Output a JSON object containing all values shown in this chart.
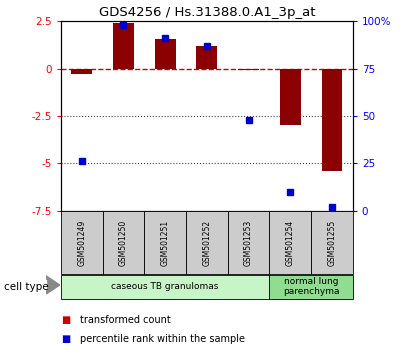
{
  "title": "GDS4256 / Hs.31388.0.A1_3p_at",
  "samples": [
    "GSM501249",
    "GSM501250",
    "GSM501251",
    "GSM501252",
    "GSM501253",
    "GSM501254",
    "GSM501255"
  ],
  "transformed_count": [
    -0.3,
    2.4,
    1.55,
    1.2,
    -0.1,
    -3.0,
    -5.4
  ],
  "percentile_rank": [
    26,
    98,
    91,
    87,
    48,
    10,
    2
  ],
  "ylim_left": [
    -7.5,
    2.5
  ],
  "ylim_right": [
    0,
    100
  ],
  "left_ticks": [
    2.5,
    0.0,
    -2.5,
    -5.0,
    -7.5
  ],
  "left_tick_labels": [
    "2.5",
    "0",
    "-2.5",
    "-5",
    "-7.5"
  ],
  "right_ticks": [
    100,
    75,
    50,
    25,
    0
  ],
  "right_tick_labels": [
    "100%",
    "75",
    "50",
    "25",
    "0"
  ],
  "bar_color": "#8B0000",
  "dot_color": "#0000CC",
  "hline_color": "#CC0000",
  "dotted_line_color": "#444444",
  "cell_type_groups": [
    {
      "label": "caseous TB granulomas",
      "start": 0,
      "end": 5
    },
    {
      "label": "normal lung\nparenchyma",
      "start": 5,
      "end": 7
    }
  ],
  "cell_type_label": "cell type",
  "legend_items": [
    {
      "label": "transformed count",
      "color": "#CC0000"
    },
    {
      "label": "percentile rank within the sample",
      "color": "#0000CC"
    }
  ],
  "group1_color": "#c8f5c8",
  "group2_color": "#90dc90",
  "tick_bg_color": "#cccccc"
}
